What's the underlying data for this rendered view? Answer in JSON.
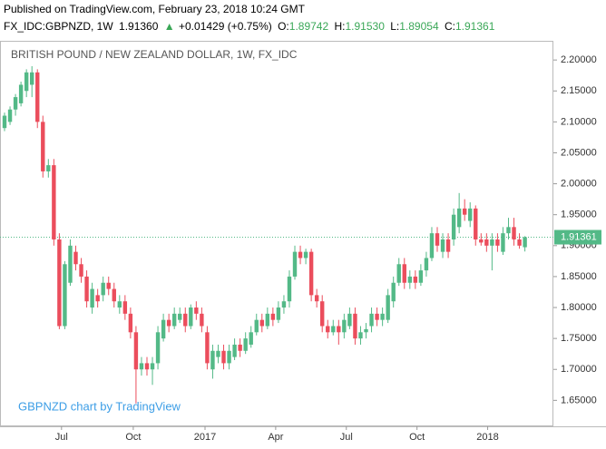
{
  "chart_data": {
    "type": "candlestick",
    "published": "Published on TradingView.com, February 23, 2018 10:24 GMT",
    "header": {
      "symbol": "FX_IDC:GBPNZD, 1W",
      "price": "1.91360",
      "change": "+0.01429 (+0.75%)",
      "o_label": "O:",
      "o": "1.89742",
      "h_label": "H:",
      "h": "1.91530",
      "l_label": "L:",
      "l": "1.89054",
      "c_label": "C:",
      "c": "1.91361"
    },
    "title": "BRITISH POUND / NEW ZEALAND DOLLAR, 1W, FX_IDC",
    "watermark": "GBPNZD chart by TradingView",
    "up_color": "#53b987",
    "down_color": "#eb4d5c",
    "last_price": {
      "value": 1.91361,
      "label": "1.91361"
    },
    "ohlc": [
      [
        2.09,
        2.115,
        2.085,
        2.11
      ],
      [
        2.1,
        2.125,
        2.095,
        2.12
      ],
      [
        2.12,
        2.145,
        2.11,
        2.14
      ],
      [
        2.13,
        2.165,
        2.125,
        2.16
      ],
      [
        2.15,
        2.185,
        2.14,
        2.18
      ],
      [
        2.16,
        2.19,
        2.14,
        2.18
      ],
      [
        2.18,
        2.185,
        2.09,
        2.1
      ],
      [
        2.1,
        2.11,
        2.01,
        2.02
      ],
      [
        2.02,
        2.04,
        2.01,
        2.03
      ],
      [
        2.03,
        2.04,
        1.9,
        1.91
      ],
      [
        1.91,
        1.92,
        1.765,
        1.77
      ],
      [
        1.77,
        1.875,
        1.765,
        1.87
      ],
      [
        1.84,
        1.91,
        1.835,
        1.9
      ],
      [
        1.89,
        1.9,
        1.86,
        1.87
      ],
      [
        1.87,
        1.88,
        1.84,
        1.85
      ],
      [
        1.85,
        1.86,
        1.8,
        1.81
      ],
      [
        1.8,
        1.84,
        1.79,
        1.83
      ],
      [
        1.82,
        1.83,
        1.8,
        1.81
      ],
      [
        1.82,
        1.85,
        1.81,
        1.84
      ],
      [
        1.84,
        1.85,
        1.82,
        1.83
      ],
      [
        1.83,
        1.84,
        1.8,
        1.81
      ],
      [
        1.8,
        1.82,
        1.79,
        1.81
      ],
      [
        1.81,
        1.82,
        1.78,
        1.79
      ],
      [
        1.79,
        1.8,
        1.75,
        1.76
      ],
      [
        1.76,
        1.77,
        1.645,
        1.7
      ],
      [
        1.7,
        1.72,
        1.69,
        1.71
      ],
      [
        1.71,
        1.72,
        1.69,
        1.7
      ],
      [
        1.7,
        1.72,
        1.675,
        1.71
      ],
      [
        1.71,
        1.77,
        1.7,
        1.76
      ],
      [
        1.75,
        1.79,
        1.745,
        1.78
      ],
      [
        1.78,
        1.79,
        1.76,
        1.77
      ],
      [
        1.77,
        1.8,
        1.765,
        1.79
      ],
      [
        1.78,
        1.8,
        1.775,
        1.79
      ],
      [
        1.79,
        1.8,
        1.76,
        1.77
      ],
      [
        1.77,
        1.805,
        1.765,
        1.8
      ],
      [
        1.8,
        1.81,
        1.78,
        1.79
      ],
      [
        1.79,
        1.8,
        1.76,
        1.77
      ],
      [
        1.76,
        1.77,
        1.7,
        1.71
      ],
      [
        1.7,
        1.74,
        1.685,
        1.73
      ],
      [
        1.72,
        1.74,
        1.71,
        1.73
      ],
      [
        1.73,
        1.74,
        1.7,
        1.71
      ],
      [
        1.71,
        1.74,
        1.7,
        1.73
      ],
      [
        1.72,
        1.75,
        1.715,
        1.74
      ],
      [
        1.74,
        1.75,
        1.72,
        1.73
      ],
      [
        1.73,
        1.76,
        1.725,
        1.75
      ],
      [
        1.74,
        1.77,
        1.735,
        1.76
      ],
      [
        1.76,
        1.79,
        1.755,
        1.78
      ],
      [
        1.78,
        1.79,
        1.76,
        1.77
      ],
      [
        1.77,
        1.8,
        1.765,
        1.79
      ],
      [
        1.79,
        1.8,
        1.77,
        1.78
      ],
      [
        1.78,
        1.81,
        1.775,
        1.8
      ],
      [
        1.8,
        1.82,
        1.79,
        1.81
      ],
      [
        1.81,
        1.86,
        1.8,
        1.85
      ],
      [
        1.85,
        1.9,
        1.845,
        1.89
      ],
      [
        1.89,
        1.9,
        1.87,
        1.88
      ],
      [
        1.88,
        1.895,
        1.87,
        1.89
      ],
      [
        1.89,
        1.895,
        1.81,
        1.82
      ],
      [
        1.82,
        1.83,
        1.8,
        1.81
      ],
      [
        1.81,
        1.82,
        1.76,
        1.77
      ],
      [
        1.77,
        1.78,
        1.75,
        1.76
      ],
      [
        1.76,
        1.78,
        1.755,
        1.77
      ],
      [
        1.77,
        1.78,
        1.74,
        1.76
      ],
      [
        1.76,
        1.79,
        1.75,
        1.78
      ],
      [
        1.77,
        1.8,
        1.765,
        1.79
      ],
      [
        1.79,
        1.8,
        1.74,
        1.75
      ],
      [
        1.75,
        1.77,
        1.74,
        1.76
      ],
      [
        1.76,
        1.775,
        1.75,
        1.765
      ],
      [
        1.77,
        1.8,
        1.76,
        1.79
      ],
      [
        1.79,
        1.8,
        1.77,
        1.78
      ],
      [
        1.78,
        1.8,
        1.77,
        1.79
      ],
      [
        1.78,
        1.83,
        1.775,
        1.82
      ],
      [
        1.81,
        1.85,
        1.8,
        1.84
      ],
      [
        1.84,
        1.88,
        1.835,
        1.87
      ],
      [
        1.87,
        1.88,
        1.83,
        1.84
      ],
      [
        1.84,
        1.86,
        1.83,
        1.85
      ],
      [
        1.85,
        1.86,
        1.83,
        1.84
      ],
      [
        1.84,
        1.87,
        1.835,
        1.86
      ],
      [
        1.86,
        1.89,
        1.85,
        1.88
      ],
      [
        1.88,
        1.93,
        1.875,
        1.92
      ],
      [
        1.92,
        1.93,
        1.89,
        1.9
      ],
      [
        1.89,
        1.92,
        1.88,
        1.91
      ],
      [
        1.91,
        1.92,
        1.88,
        1.89
      ],
      [
        1.91,
        1.96,
        1.9,
        1.95
      ],
      [
        1.93,
        1.985,
        1.92,
        1.96
      ],
      [
        1.96,
        1.975,
        1.94,
        1.95
      ],
      [
        1.94,
        1.97,
        1.93,
        1.96
      ],
      [
        1.96,
        1.965,
        1.9,
        1.91
      ],
      [
        1.91,
        1.92,
        1.9,
        1.905
      ],
      [
        1.91,
        1.92,
        1.89,
        1.9
      ],
      [
        1.9,
        1.92,
        1.86,
        1.91
      ],
      [
        1.91,
        1.92,
        1.89,
        1.9
      ],
      [
        1.89,
        1.93,
        1.885,
        1.92
      ],
      [
        1.92,
        1.945,
        1.91,
        1.93
      ],
      [
        1.93,
        1.945,
        1.9,
        1.91
      ],
      [
        1.91,
        1.92,
        1.895,
        1.9
      ],
      [
        1.89742,
        1.9153,
        1.89054,
        1.91361
      ]
    ],
    "xlim": [
      -0.83,
      100.2
    ],
    "xticks": [
      {
        "value": 10.4,
        "label": "Jul"
      },
      {
        "value": 23.5,
        "label": "Oct"
      },
      {
        "value": 36.6,
        "label": "2017"
      },
      {
        "value": 49.5,
        "label": "Apr"
      },
      {
        "value": 62.4,
        "label": "Jul"
      },
      {
        "value": 75.3,
        "label": "Oct"
      },
      {
        "value": 88.2,
        "label": "2018"
      }
    ],
    "ylim": [
      1.608,
      2.231
    ],
    "yticks": [
      {
        "value": 1.65,
        "label": "1.65000"
      },
      {
        "value": 1.7,
        "label": "1.70000"
      },
      {
        "value": 1.75,
        "label": "1.75000"
      },
      {
        "value": 1.8,
        "label": "1.80000"
      },
      {
        "value": 1.85,
        "label": "1.85000"
      },
      {
        "value": 1.9,
        "label": "1.90000"
      },
      {
        "value": 1.95,
        "label": "1.95000"
      },
      {
        "value": 2.0,
        "label": "2.00000"
      },
      {
        "value": 2.05,
        "label": "2.05000"
      },
      {
        "value": 2.1,
        "label": "2.10000"
      },
      {
        "value": 2.15,
        "label": "2.15000"
      },
      {
        "value": 2.2,
        "label": "2.20000"
      }
    ]
  }
}
